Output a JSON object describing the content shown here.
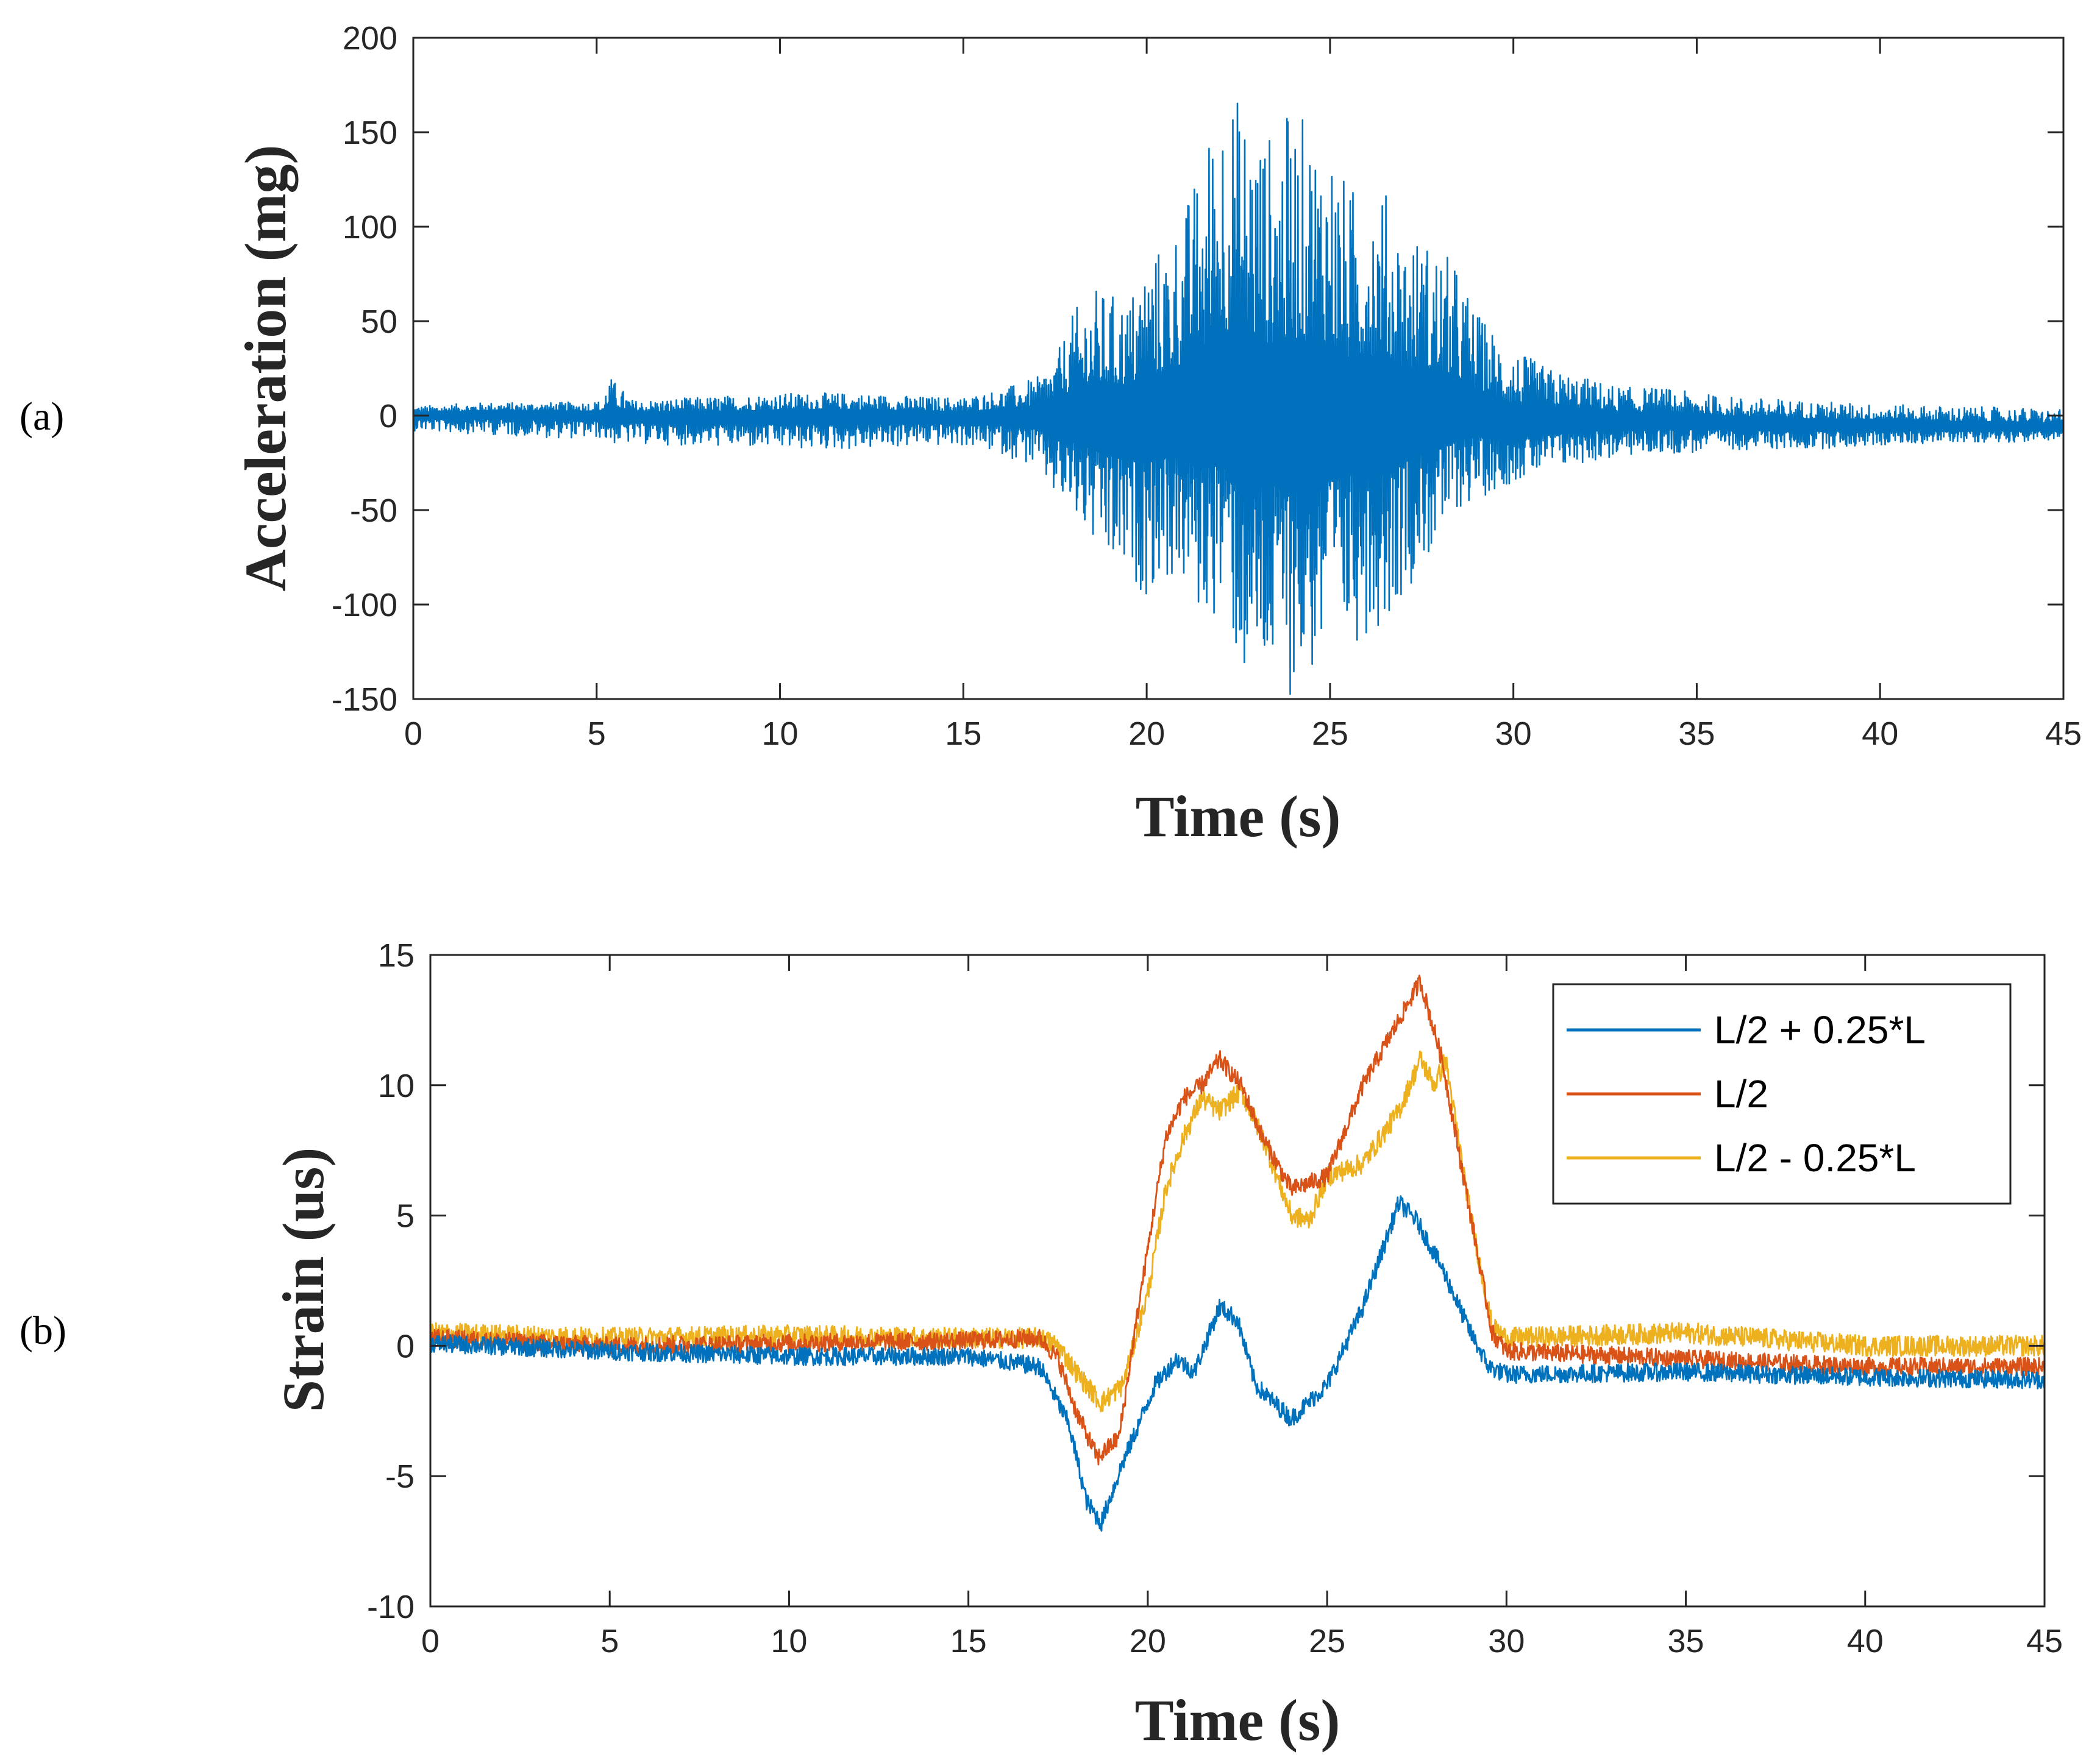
{
  "panels": [
    {
      "label": "(a)"
    },
    {
      "label": "(b)"
    }
  ],
  "chart_data": [
    {
      "type": "line",
      "title": "",
      "xlabel": "Time (s)",
      "ylabel": "Acceleration (mg)",
      "xlim": [
        0,
        45
      ],
      "ylim": [
        -150,
        200
      ],
      "xticks": [
        "0",
        "5",
        "10",
        "15",
        "20",
        "25",
        "30",
        "35",
        "40",
        "45"
      ],
      "yticks": [
        "-150",
        "-100",
        "-50",
        "0",
        "50",
        "100",
        "150",
        "200"
      ],
      "grid": false,
      "legend": null,
      "series": [
        {
          "color": "#0072BD",
          "x": [
            0,
            2,
            4,
            5.2,
            5.3,
            6,
            8,
            10,
            12,
            14,
            15,
            16,
            17,
            17.5,
            18,
            18.5,
            19,
            19.5,
            20,
            20.5,
            21,
            21.5,
            22,
            22.2,
            22.5,
            23,
            23.3,
            23.5,
            24,
            24.5,
            25,
            25.5,
            26,
            26.5,
            27,
            27.5,
            28,
            28.5,
            29,
            29.5,
            30,
            31,
            32,
            33,
            34,
            35,
            36,
            38,
            40,
            42,
            44,
            45
          ],
          "upper": [
            5,
            7,
            7,
            8,
            22,
            8,
            10,
            12,
            12,
            10,
            10,
            14,
            20,
            30,
            55,
            68,
            65,
            62,
            85,
            92,
            110,
            135,
            180,
            178,
            170,
            160,
            150,
            155,
            163,
            155,
            150,
            120,
            130,
            120,
            100,
            95,
            90,
            78,
            55,
            45,
            35,
            25,
            20,
            15,
            15,
            12,
            10,
            8,
            6,
            5,
            4,
            3
          ],
          "lower": [
            -8,
            -10,
            -12,
            -12,
            -15,
            -15,
            -16,
            -18,
            -18,
            -16,
            -16,
            -20,
            -28,
            -45,
            -55,
            -70,
            -85,
            -90,
            -95,
            -88,
            -92,
            -110,
            -105,
            -100,
            -140,
            -150,
            -145,
            -148,
            -148,
            -140,
            -135,
            -125,
            -115,
            -110,
            -95,
            -80,
            -70,
            -50,
            -45,
            -40,
            -35,
            -30,
            -25,
            -22,
            -20,
            -20,
            -18,
            -18,
            -16,
            -14,
            -14,
            -12
          ],
          "center": [
            0,
            1,
            1,
            0,
            0,
            0,
            -1,
            0,
            0,
            0,
            -1,
            0,
            0,
            0,
            0,
            0,
            0,
            0,
            0,
            0,
            0,
            0,
            0,
            0,
            0,
            0,
            0,
            0,
            0,
            0,
            0,
            0,
            0,
            0,
            0,
            0,
            0,
            0,
            0,
            -2,
            -4,
            -3,
            -2,
            -3,
            -3,
            -3,
            -4,
            -5,
            -5,
            -6,
            -6,
            -7
          ]
        }
      ]
    },
    {
      "type": "line",
      "title": "",
      "xlabel": "Time (s)",
      "ylabel": "Strain (us)",
      "xlim": [
        0,
        45
      ],
      "ylim": [
        -10,
        15
      ],
      "xticks": [
        "0",
        "5",
        "10",
        "15",
        "20",
        "25",
        "30",
        "35",
        "40",
        "45"
      ],
      "yticks": [
        "-10",
        "-5",
        "0",
        "5",
        "10",
        "15"
      ],
      "grid": false,
      "legend": "top-right",
      "series": [
        {
          "name": "L/2 + 0.25*L",
          "color": "#0072BD",
          "noise": 0.35,
          "x": [
            0,
            5,
            10,
            15,
            17,
            17.8,
            18.3,
            18.7,
            19.3,
            20.2,
            20.8,
            21.3,
            22,
            22.5,
            23,
            24,
            25,
            26,
            27,
            27.5,
            28.2,
            29,
            29.5,
            30,
            35,
            40,
            45
          ],
          "y": [
            0.1,
            -0.2,
            -0.4,
            -0.4,
            -0.8,
            -3,
            -6,
            -6.8,
            -4.5,
            -1.5,
            -0.5,
            -1,
            1.5,
            1,
            -1.5,
            -2.8,
            -1.5,
            1.5,
            5.5,
            4.8,
            3,
            0.5,
            -0.8,
            -1.1,
            -1,
            -1.2,
            -1.3
          ]
        },
        {
          "name": "L/2",
          "color": "#D95319",
          "noise": 0.35,
          "x": [
            0,
            5,
            10,
            15,
            17,
            17.5,
            18,
            18.6,
            19.2,
            19.8,
            20.5,
            21,
            21.5,
            22,
            22.6,
            23.2,
            24,
            25,
            26,
            27,
            27.6,
            28.2,
            29,
            29.6,
            30,
            35,
            40,
            45
          ],
          "y": [
            0.3,
            0,
            0.1,
            0.2,
            0.3,
            -0.5,
            -2.5,
            -4.3,
            -3.5,
            2,
            8,
            9.5,
            10,
            11,
            10,
            8,
            6,
            6.5,
            10,
            12.5,
            14,
            11,
            5,
            0.5,
            -0.2,
            -0.5,
            -0.8,
            -0.8
          ]
        },
        {
          "name": "L/2 - 0.25*L",
          "color": "#EDB120",
          "noise": 0.4,
          "x": [
            0,
            5,
            10,
            15,
            17,
            17.5,
            18,
            18.7,
            19.3,
            20,
            20.5,
            21,
            21.5,
            22,
            22.6,
            23.2,
            24,
            24.5,
            25,
            26,
            27,
            27.6,
            28,
            28.3,
            29,
            29.6,
            30,
            35,
            40,
            45
          ],
          "y": [
            0.5,
            0.3,
            0.4,
            0.3,
            0.3,
            0,
            -1,
            -2.2,
            -1.5,
            2,
            6,
            8,
            9.5,
            9,
            9.8,
            8,
            5,
            4.8,
            6.5,
            7,
            9,
            11,
            10,
            11,
            5,
            0.7,
            0.3,
            0.5,
            0,
            0
          ]
        }
      ]
    }
  ]
}
